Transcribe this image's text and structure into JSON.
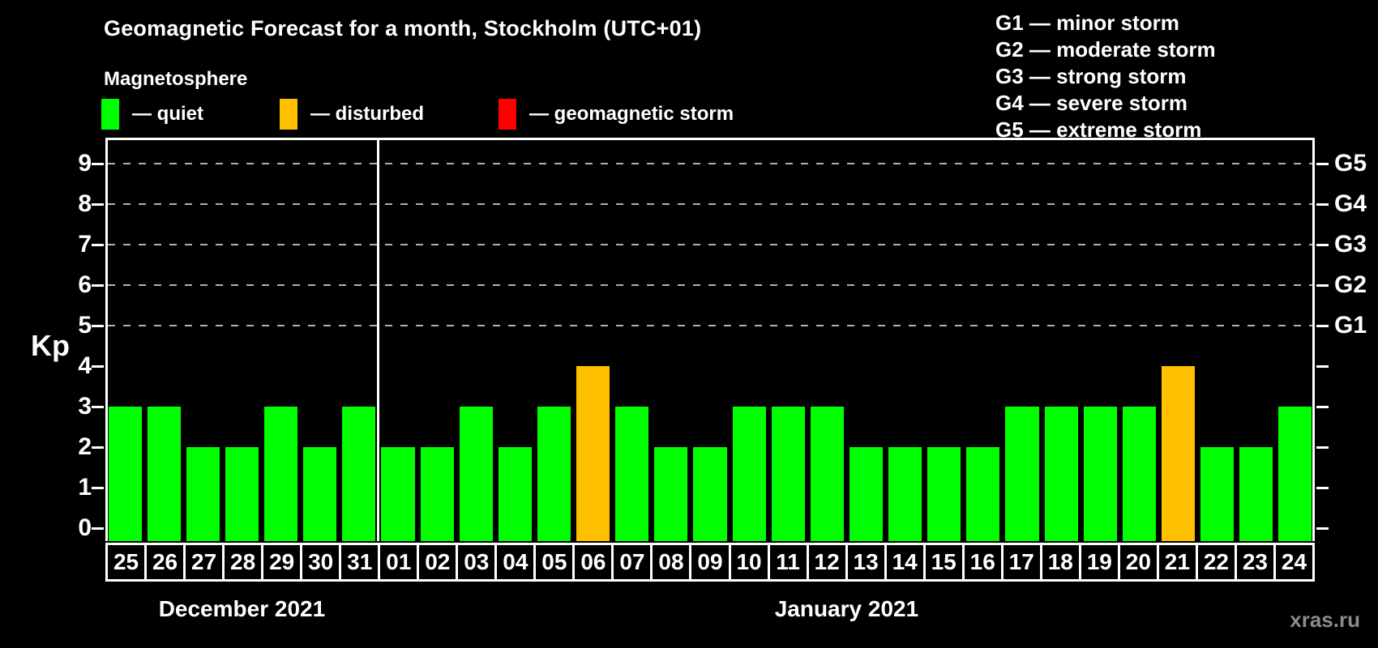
{
  "header": {
    "title": "Geomagnetic Forecast for a month, Stockholm (UTC+01)",
    "subtitle": "Magnetosphere"
  },
  "legend": {
    "items": [
      {
        "key": "quiet",
        "label": "— quiet",
        "color": "#00ff00"
      },
      {
        "key": "disturbed",
        "label": "— disturbed",
        "color": "#ffc000"
      },
      {
        "key": "storm",
        "label": "— geomagnetic storm",
        "color": "#ff0000"
      }
    ]
  },
  "g_legend": {
    "items": [
      "G1 — minor storm",
      "G2 — moderate storm",
      "G3 — strong storm",
      "G4 — severe storm",
      "G5 — extreme storm"
    ]
  },
  "watermark": "xras.ru",
  "chart_data": {
    "type": "bar",
    "title": "Geomagnetic Forecast for a month, Stockholm (UTC+01)",
    "ylabel": "Kp",
    "ylim": [
      0,
      9.6
    ],
    "yticks": [
      0,
      1,
      2,
      3,
      4,
      5,
      6,
      7,
      8,
      9
    ],
    "gridlines_at": [
      5,
      6,
      7,
      8,
      9
    ],
    "grid": "dashed horizontal lines at storm levels only",
    "legend_position": "top",
    "right_axis": [
      {
        "label": "G1",
        "kp": 5
      },
      {
        "label": "G2",
        "kp": 6
      },
      {
        "label": "G3",
        "kp": 7
      },
      {
        "label": "G4",
        "kp": 8
      },
      {
        "label": "G5",
        "kp": 9
      }
    ],
    "status_colors": {
      "quiet": "#00ff00",
      "disturbed": "#ffc000",
      "storm": "#ff0000"
    },
    "months": [
      {
        "label": "December 2021",
        "days": [
          "25",
          "26",
          "27",
          "28",
          "29",
          "30",
          "31"
        ],
        "values": [
          3,
          3,
          2,
          2,
          3,
          2,
          3
        ],
        "status": [
          "quiet",
          "quiet",
          "quiet",
          "quiet",
          "quiet",
          "quiet",
          "quiet"
        ]
      },
      {
        "label": "January 2021",
        "days": [
          "01",
          "02",
          "03",
          "04",
          "05",
          "06",
          "07",
          "08",
          "09",
          "10",
          "11",
          "12",
          "13",
          "14",
          "15",
          "16",
          "17",
          "18",
          "19",
          "20",
          "21",
          "22",
          "23",
          "24"
        ],
        "values": [
          2,
          2,
          3,
          2,
          3,
          4,
          3,
          2,
          2,
          3,
          3,
          3,
          2,
          2,
          2,
          2,
          3,
          3,
          3,
          3,
          4,
          2,
          2,
          3
        ],
        "status": [
          "quiet",
          "quiet",
          "quiet",
          "quiet",
          "quiet",
          "disturbed",
          "quiet",
          "quiet",
          "quiet",
          "quiet",
          "quiet",
          "quiet",
          "quiet",
          "quiet",
          "quiet",
          "quiet",
          "quiet",
          "quiet",
          "quiet",
          "quiet",
          "disturbed",
          "quiet",
          "quiet",
          "quiet"
        ]
      }
    ]
  }
}
